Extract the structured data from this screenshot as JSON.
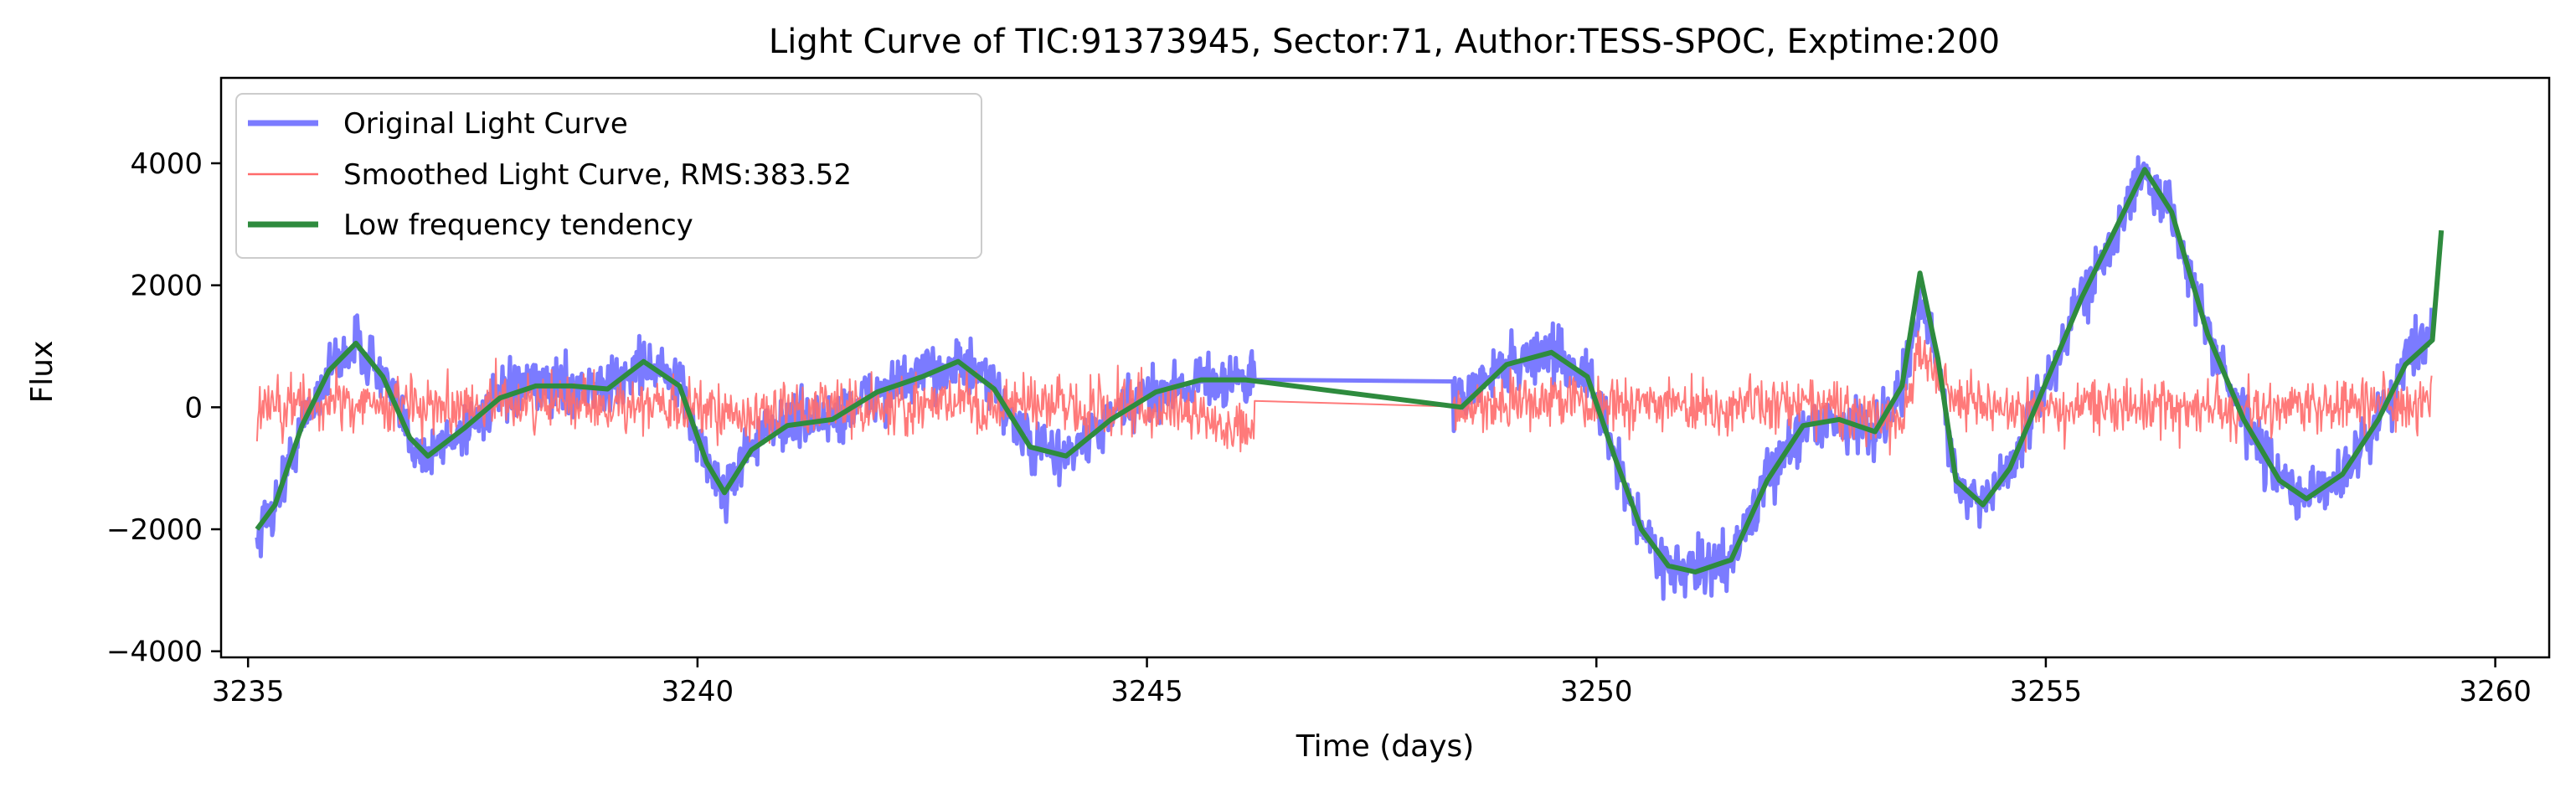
{
  "chart_data": {
    "type": "line",
    "title": "Light Curve of TIC:91373945, Sector:71, Author:TESS-SPOC, Exptime:200",
    "xlabel": "Time (days)",
    "ylabel": "Flux",
    "xlim": [
      3234.7,
      3260.6
    ],
    "ylim": [
      -4100,
      5400
    ],
    "xticks": [
      3235,
      3240,
      3245,
      3250,
      3255,
      3260
    ],
    "yticks": [
      -4000,
      -2000,
      0,
      2000,
      4000
    ],
    "xtick_labels": [
      "3235",
      "3240",
      "3245",
      "3250",
      "3255",
      "3260"
    ],
    "ytick_labels": [
      "−4000",
      "−2000",
      "0",
      "2000",
      "4000"
    ],
    "grid": false,
    "legend_position": "top-left",
    "data_gap": [
      3246.2,
      3248.4
    ],
    "series": [
      {
        "name": "Original Light Curve",
        "color": "#7b7bff",
        "style": "thick-noisy",
        "noise_amplitude": 450,
        "x": [
          3235.1,
          3235.3,
          3235.6,
          3235.9,
          3236.2,
          3236.5,
          3236.8,
          3237.0,
          3237.4,
          3237.8,
          3238.2,
          3238.6,
          3239.0,
          3239.4,
          3239.8,
          3240.1,
          3240.3,
          3240.6,
          3241.0,
          3241.5,
          3242.0,
          3242.5,
          3242.9,
          3243.3,
          3243.7,
          3244.1,
          3244.6,
          3245.1,
          3245.6,
          3246.1,
          3248.5,
          3249.0,
          3249.5,
          3249.9,
          3250.2,
          3250.5,
          3250.8,
          3251.1,
          3251.5,
          3251.9,
          3252.3,
          3252.7,
          3253.1,
          3253.4,
          3253.6,
          3253.8,
          3254.0,
          3254.3,
          3254.6,
          3255.0,
          3255.4,
          3255.8,
          3256.1,
          3256.4,
          3256.8,
          3257.2,
          3257.6,
          3257.9,
          3258.3,
          3258.7,
          3259.0,
          3259.3
        ],
        "y": [
          -2100,
          -1600,
          -300,
          600,
          1050,
          500,
          -500,
          -800,
          -350,
          150,
          350,
          350,
          300,
          750,
          350,
          -900,
          -1400,
          -600,
          -200,
          -200,
          250,
          500,
          750,
          300,
          -650,
          -800,
          -200,
          250,
          450,
          450,
          150,
          700,
          900,
          500,
          -800,
          -2000,
          -2600,
          -2700,
          -2500,
          -1200,
          -300,
          -200,
          -400,
          350,
          1600,
          800,
          -1200,
          -1600,
          -1000,
          400,
          1800,
          3000,
          3800,
          3200,
          1200,
          -200,
          -1200,
          -1500,
          -1100,
          -200,
          700,
          1400
        ]
      },
      {
        "name": "Smoothed Light Curve, RMS:383.52",
        "color": "#ff6b6b",
        "style": "thin-noisy",
        "noise_amplitude": 480,
        "x": [
          3235.1,
          3236.0,
          3237.0,
          3238.0,
          3239.0,
          3240.0,
          3240.5,
          3241.0,
          3242.0,
          3243.0,
          3244.0,
          3245.0,
          3246.1,
          3248.5,
          3249.5,
          3250.5,
          3251.5,
          3252.5,
          3253.4,
          3253.6,
          3254.0,
          3255.0,
          3256.0,
          3257.0,
          3258.0,
          3259.3
        ],
        "y": [
          0,
          100,
          0,
          50,
          50,
          0,
          -200,
          0,
          50,
          100,
          0,
          50,
          -300,
          0,
          100,
          0,
          0,
          50,
          -300,
          1000,
          0,
          0,
          50,
          0,
          0,
          100
        ]
      },
      {
        "name": "Low frequency tendency",
        "color": "#2e8b3e",
        "style": "smooth",
        "x": [
          3235.1,
          3235.3,
          3235.6,
          3235.9,
          3236.2,
          3236.5,
          3236.8,
          3237.0,
          3237.4,
          3237.8,
          3238.2,
          3238.6,
          3239.0,
          3239.4,
          3239.8,
          3240.1,
          3240.3,
          3240.6,
          3241.0,
          3241.5,
          3242.0,
          3242.5,
          3242.9,
          3243.3,
          3243.7,
          3244.1,
          3244.6,
          3245.1,
          3245.6,
          3246.1,
          3248.5,
          3249.0,
          3249.5,
          3249.9,
          3250.2,
          3250.5,
          3250.8,
          3251.1,
          3251.5,
          3251.9,
          3252.3,
          3252.7,
          3253.1,
          3253.4,
          3253.6,
          3253.8,
          3254.0,
          3254.3,
          3254.6,
          3255.0,
          3255.4,
          3255.8,
          3256.1,
          3256.4,
          3256.8,
          3257.2,
          3257.6,
          3257.9,
          3258.3,
          3258.7,
          3259.0,
          3259.3,
          3259.4
        ],
        "y": [
          -2000,
          -1600,
          -300,
          600,
          1050,
          500,
          -500,
          -800,
          -350,
          150,
          350,
          350,
          300,
          750,
          350,
          -900,
          -1400,
          -700,
          -300,
          -200,
          250,
          500,
          750,
          300,
          -650,
          -800,
          -200,
          250,
          450,
          450,
          0,
          700,
          900,
          500,
          -800,
          -2000,
          -2600,
          -2700,
          -2500,
          -1200,
          -300,
          -200,
          -400,
          350,
          2200,
          800,
          -1200,
          -1600,
          -1000,
          400,
          1800,
          3000,
          3900,
          3200,
          1200,
          -200,
          -1200,
          -1500,
          -1100,
          -200,
          700,
          1100,
          2900
        ]
      }
    ]
  }
}
